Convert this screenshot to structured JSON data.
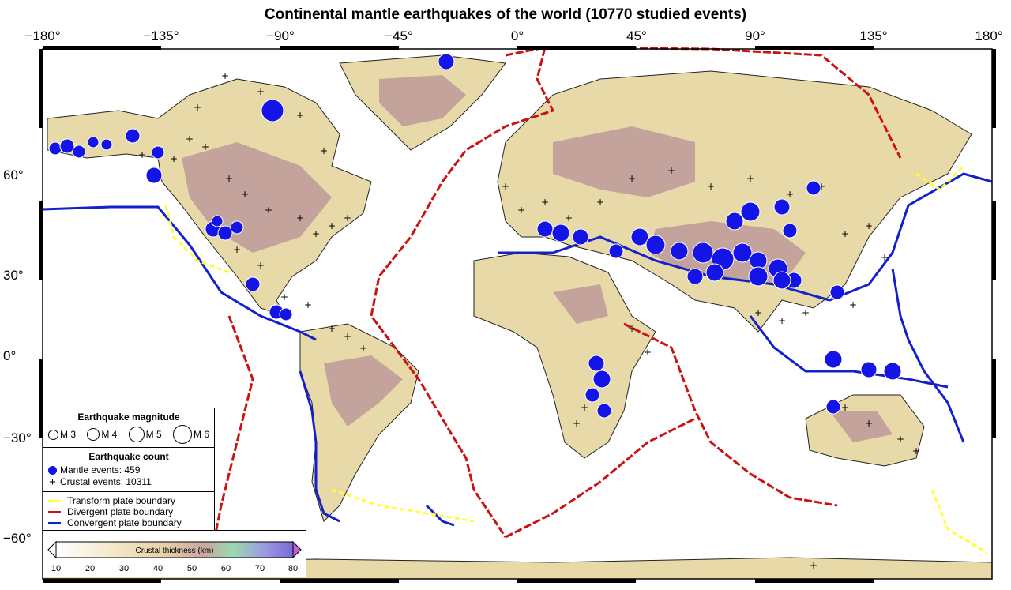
{
  "title": "Continental mantle earthquakes of the world (10770 studied events)",
  "lon_ticks": [
    "−180°",
    "−135°",
    "−90°",
    "−45°",
    "0°",
    "45°",
    "90°",
    "135°",
    "180°"
  ],
  "lat_ticks": [
    "60°",
    "30°",
    "0°",
    "−30°",
    "−60°"
  ],
  "legend": {
    "magnitude_title": "Earthquake magnitude",
    "magnitudes": [
      "M 3",
      "M 4",
      "M 5",
      "M 6"
    ],
    "count_title": "Earthquake count",
    "mantle_label": "Mantle events: 459",
    "crustal_label": "Crustal events: 10311",
    "boundaries": [
      {
        "label": "Transform plate boundary",
        "color": "#ffff33"
      },
      {
        "label": "Divergent plate boundary",
        "color": "#cc1111"
      },
      {
        "label": "Convergent plate boundary",
        "color": "#1420cc"
      }
    ]
  },
  "colorbar": {
    "title": "Crustal thickness (km)",
    "ticks": [
      "10",
      "20",
      "30",
      "40",
      "50",
      "60",
      "70",
      "80"
    ]
  },
  "colors": {
    "ocean": "#ffffff",
    "thin_crust": "#e8d9a8",
    "thick_crust": "#b89098",
    "mantle_event": "#1414e6",
    "transform": "#ffff33",
    "divergent": "#cc1111",
    "convergent": "#1420cc"
  },
  "map": {
    "lon_range": [
      -180,
      180
    ],
    "lat_range": [
      -75,
      85
    ]
  }
}
